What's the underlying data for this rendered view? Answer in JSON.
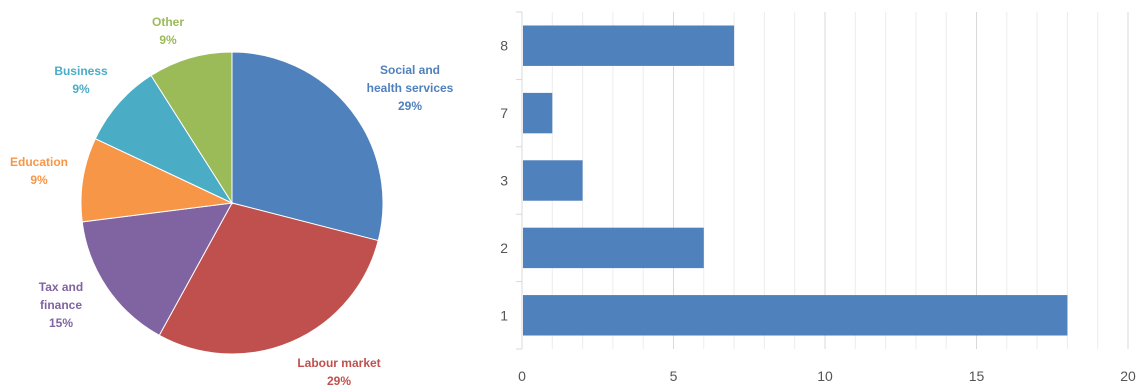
{
  "chart_data": [
    {
      "type": "pie",
      "slices": [
        {
          "label_lines": [
            "Social  and",
            "health services"
          ],
          "percent_label": "29%",
          "value": 29,
          "color": "#4f81bd"
        },
        {
          "label_lines": [
            "Labour market"
          ],
          "percent_label": "29%",
          "value": 29,
          "color": "#c0504d"
        },
        {
          "label_lines": [
            "Tax and",
            "finance"
          ],
          "percent_label": "15%",
          "value": 15,
          "color": "#8064a2"
        },
        {
          "label_lines": [
            "Education"
          ],
          "percent_label": "9%",
          "value": 9,
          "color": "#f79646"
        },
        {
          "label_lines": [
            "Business"
          ],
          "percent_label": "9%",
          "value": 9,
          "color": "#4bacc6"
        },
        {
          "label_lines": [
            "Other"
          ],
          "percent_label": "9%",
          "value": 9,
          "color": "#9bbb59"
        }
      ]
    },
    {
      "type": "bar",
      "orientation": "horizontal",
      "categories": [
        "8",
        "7",
        "3",
        "2",
        "1"
      ],
      "values": [
        7,
        1,
        2,
        6,
        18
      ],
      "xlim": [
        0,
        20
      ],
      "xticks": [
        "0",
        "5",
        "10",
        "15",
        "20"
      ],
      "bar_color": "#4f81bd",
      "grid": "vertical"
    }
  ]
}
